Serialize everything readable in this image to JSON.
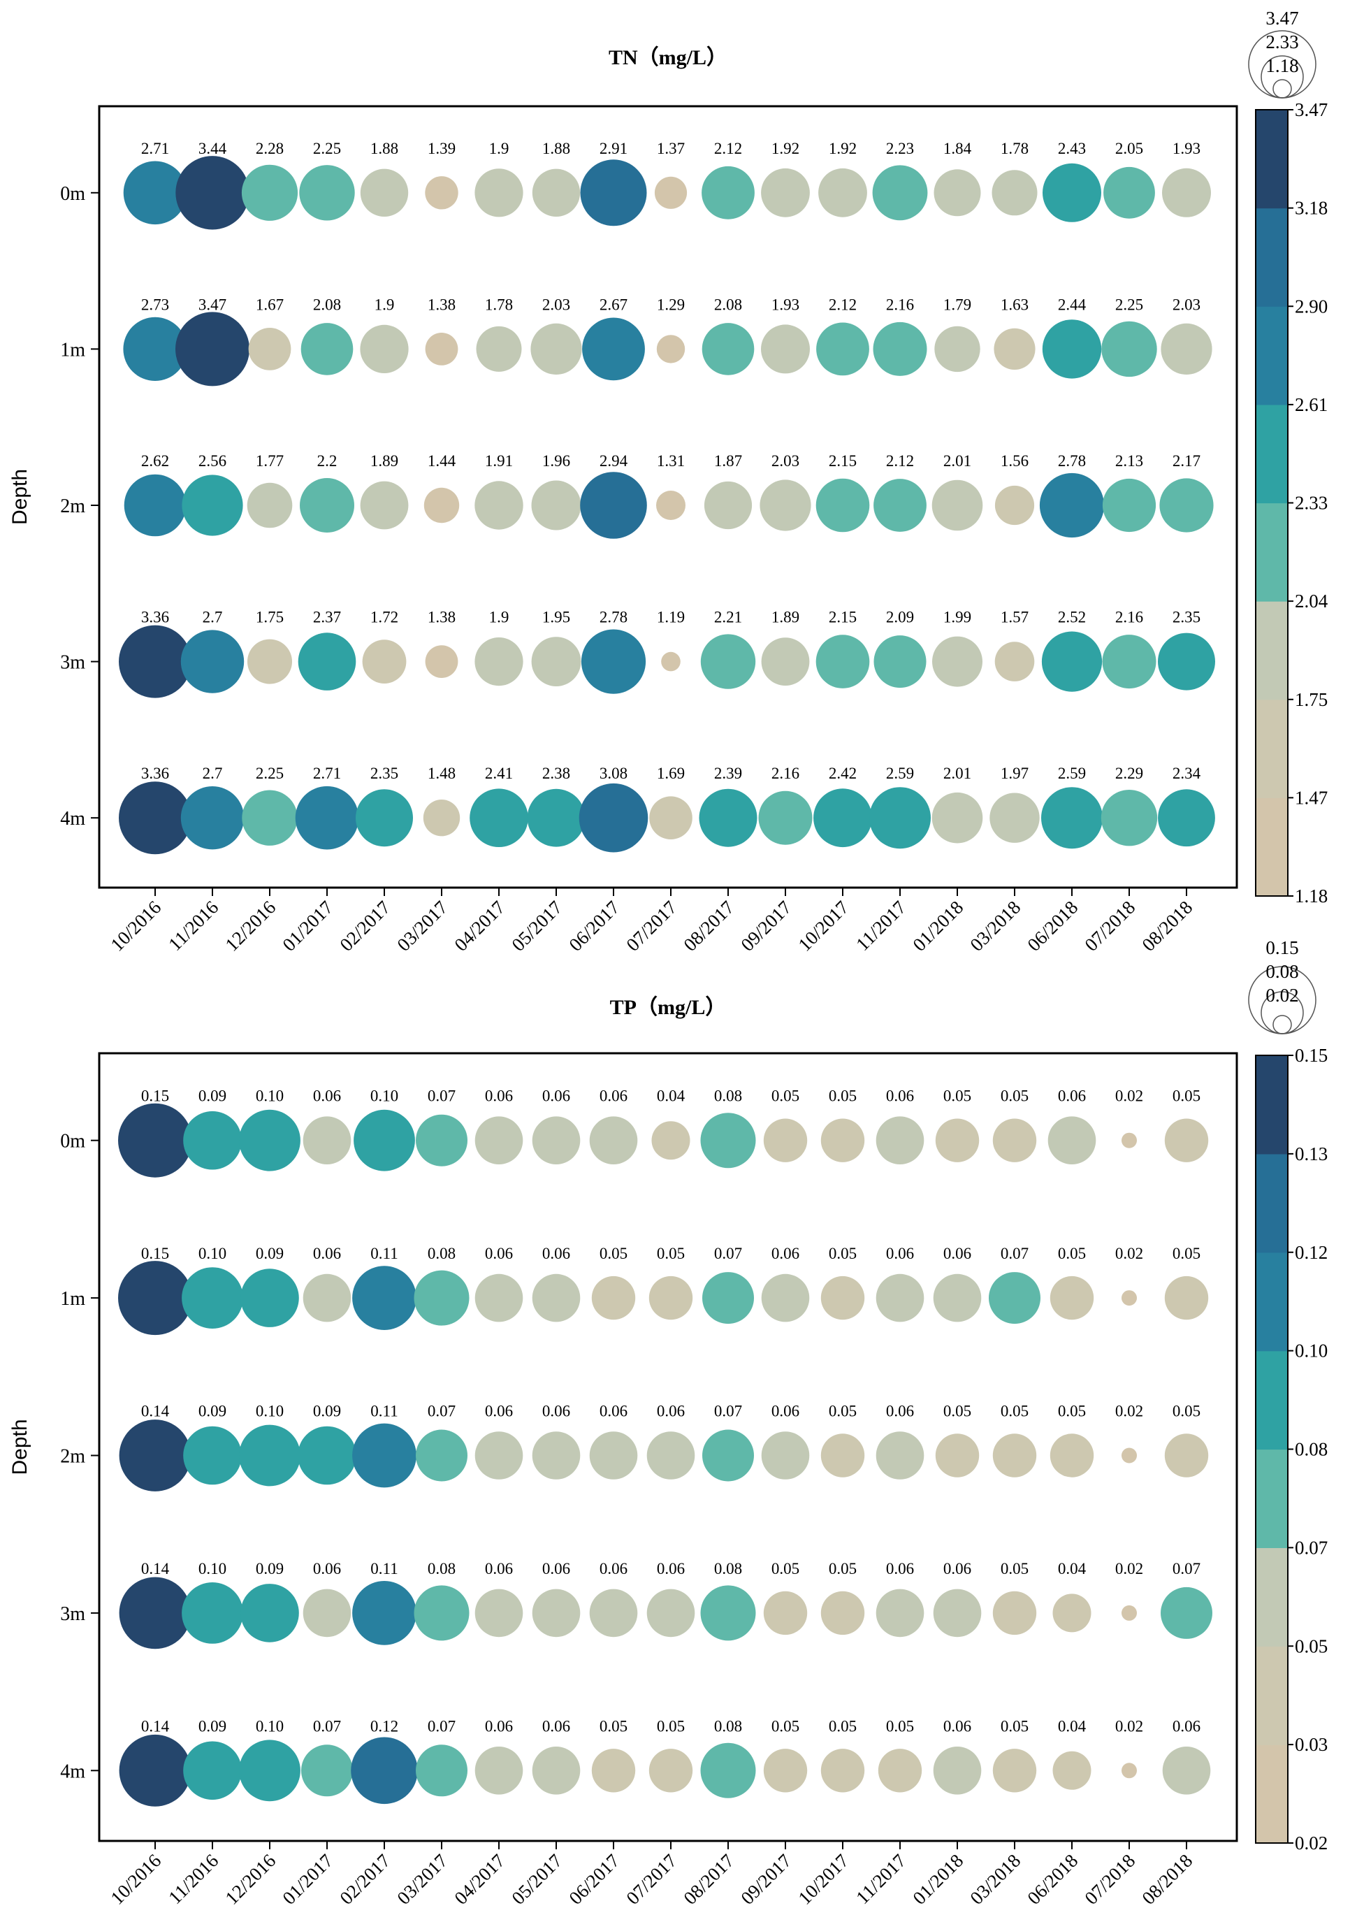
{
  "chart_data": [
    {
      "type": "bubble",
      "title": "TN（mg/L）",
      "ylabel": "Depth",
      "xlabel": "",
      "rows": [
        "0m",
        "1m",
        "2m",
        "3m",
        "4m"
      ],
      "categories": [
        "10/2016",
        "11/2016",
        "12/2016",
        "01/2017",
        "02/2017",
        "03/2017",
        "04/2017",
        "05/2017",
        "06/2017",
        "07/2017",
        "08/2017",
        "09/2017",
        "10/2017",
        "11/2017",
        "01/2018",
        "03/2018",
        "06/2018",
        "07/2018",
        "08/2018"
      ],
      "values": [
        [
          2.71,
          3.44,
          2.28,
          2.25,
          1.88,
          1.39,
          1.9,
          1.88,
          2.91,
          1.37,
          2.12,
          1.92,
          1.92,
          2.23,
          1.84,
          1.78,
          2.43,
          2.05,
          1.93
        ],
        [
          2.73,
          3.47,
          1.67,
          2.08,
          1.9,
          1.38,
          1.78,
          2.03,
          2.67,
          1.29,
          2.08,
          1.93,
          2.12,
          2.16,
          1.79,
          1.63,
          2.44,
          2.25,
          2.03
        ],
        [
          2.62,
          2.56,
          1.77,
          2.2,
          1.89,
          1.44,
          1.91,
          1.96,
          2.94,
          1.31,
          1.87,
          2.03,
          2.15,
          2.12,
          2.01,
          1.56,
          2.78,
          2.13,
          2.17
        ],
        [
          3.36,
          2.7,
          1.75,
          2.37,
          1.72,
          1.38,
          1.9,
          1.95,
          2.78,
          1.19,
          2.21,
          1.89,
          2.15,
          2.09,
          1.99,
          1.57,
          2.52,
          2.16,
          2.35
        ],
        [
          3.36,
          2.7,
          2.25,
          2.71,
          2.35,
          1.48,
          2.41,
          2.38,
          3.08,
          1.69,
          2.39,
          2.16,
          2.42,
          2.59,
          2.01,
          1.97,
          2.59,
          2.29,
          2.34
        ]
      ],
      "labels": [
        [
          "2.71",
          "3.44",
          "2.28",
          "2.25",
          "1.88",
          "1.39",
          "1.9",
          "1.88",
          "2.91",
          "1.37",
          "2.12",
          "1.92",
          "1.92",
          "2.23",
          "1.84",
          "1.78",
          "2.43",
          "2.05",
          "1.93"
        ],
        [
          "2.73",
          "3.47",
          "1.67",
          "2.08",
          "1.9",
          "1.38",
          "1.78",
          "2.03",
          "2.67",
          "1.29",
          "2.08",
          "1.93",
          "2.12",
          "2.16",
          "1.79",
          "1.63",
          "2.44",
          "2.25",
          "2.03"
        ],
        [
          "2.62",
          "2.56",
          "1.77",
          "2.2",
          "1.89",
          "1.44",
          "1.91",
          "1.96",
          "2.94",
          "1.31",
          "1.87",
          "2.03",
          "2.15",
          "2.12",
          "2.01",
          "1.56",
          "2.78",
          "2.13",
          "2.17"
        ],
        [
          "3.36",
          "2.7",
          "1.75",
          "2.37",
          "1.72",
          "1.38",
          "1.9",
          "1.95",
          "2.78",
          "1.19",
          "2.21",
          "1.89",
          "2.15",
          "2.09",
          "1.99",
          "1.57",
          "2.52",
          "2.16",
          "2.35"
        ],
        [
          "3.36",
          "2.7",
          "2.25",
          "2.71",
          "2.35",
          "1.48",
          "2.41",
          "2.38",
          "3.08",
          "1.69",
          "2.39",
          "2.16",
          "2.42",
          "2.59",
          "2.01",
          "1.97",
          "2.59",
          "2.29",
          "2.34"
        ]
      ],
      "value_range": [
        1.18,
        3.47
      ],
      "colorbar_ticks": [
        "3.47",
        "3.18",
        "2.90",
        "2.61",
        "2.33",
        "2.04",
        "1.75",
        "1.47",
        "1.18"
      ],
      "size_legend": [
        "3.47",
        "2.33",
        "1.18"
      ]
    },
    {
      "type": "bubble",
      "title": "TP（mg/L）",
      "ylabel": "Depth",
      "xlabel": "",
      "rows": [
        "0m",
        "1m",
        "2m",
        "3m",
        "4m"
      ],
      "categories": [
        "10/2016",
        "11/2016",
        "12/2016",
        "01/2017",
        "02/2017",
        "03/2017",
        "04/2017",
        "05/2017",
        "06/2017",
        "07/2017",
        "08/2017",
        "09/2017",
        "10/2017",
        "11/2017",
        "01/2018",
        "03/2018",
        "06/2018",
        "07/2018",
        "08/2018"
      ],
      "values": [
        [
          0.15,
          0.09,
          0.1,
          0.06,
          0.1,
          0.07,
          0.06,
          0.06,
          0.06,
          0.04,
          0.08,
          0.05,
          0.05,
          0.06,
          0.05,
          0.05,
          0.06,
          0.02,
          0.05
        ],
        [
          0.15,
          0.1,
          0.09,
          0.06,
          0.11,
          0.08,
          0.06,
          0.06,
          0.05,
          0.05,
          0.07,
          0.06,
          0.05,
          0.06,
          0.06,
          0.07,
          0.05,
          0.02,
          0.05
        ],
        [
          0.14,
          0.09,
          0.1,
          0.09,
          0.11,
          0.07,
          0.06,
          0.06,
          0.06,
          0.06,
          0.07,
          0.06,
          0.05,
          0.06,
          0.05,
          0.05,
          0.05,
          0.02,
          0.05
        ],
        [
          0.14,
          0.1,
          0.09,
          0.06,
          0.11,
          0.08,
          0.06,
          0.06,
          0.06,
          0.06,
          0.08,
          0.05,
          0.05,
          0.06,
          0.06,
          0.05,
          0.04,
          0.02,
          0.07
        ],
        [
          0.14,
          0.09,
          0.1,
          0.07,
          0.12,
          0.07,
          0.06,
          0.06,
          0.05,
          0.05,
          0.08,
          0.05,
          0.05,
          0.05,
          0.06,
          0.05,
          0.04,
          0.02,
          0.06
        ]
      ],
      "labels": [
        [
          "0.15",
          "0.09",
          "0.10",
          "0.06",
          "0.10",
          "0.07",
          "0.06",
          "0.06",
          "0.06",
          "0.04",
          "0.08",
          "0.05",
          "0.05",
          "0.06",
          "0.05",
          "0.05",
          "0.06",
          "0.02",
          "0.05"
        ],
        [
          "0.15",
          "0.10",
          "0.09",
          "0.06",
          "0.11",
          "0.08",
          "0.06",
          "0.06",
          "0.05",
          "0.05",
          "0.07",
          "0.06",
          "0.05",
          "0.06",
          "0.06",
          "0.07",
          "0.05",
          "0.02",
          "0.05"
        ],
        [
          "0.14",
          "0.09",
          "0.10",
          "0.09",
          "0.11",
          "0.07",
          "0.06",
          "0.06",
          "0.06",
          "0.06",
          "0.07",
          "0.06",
          "0.05",
          "0.06",
          "0.05",
          "0.05",
          "0.05",
          "0.02",
          "0.05"
        ],
        [
          "0.14",
          "0.10",
          "0.09",
          "0.06",
          "0.11",
          "0.08",
          "0.06",
          "0.06",
          "0.06",
          "0.06",
          "0.08",
          "0.05",
          "0.05",
          "0.06",
          "0.06",
          "0.05",
          "0.04",
          "0.02",
          "0.07"
        ],
        [
          "0.14",
          "0.09",
          "0.10",
          "0.07",
          "0.12",
          "0.07",
          "0.06",
          "0.06",
          "0.05",
          "0.05",
          "0.08",
          "0.05",
          "0.05",
          "0.05",
          "0.06",
          "0.05",
          "0.04",
          "0.02",
          "0.06"
        ]
      ],
      "value_range": [
        0.02,
        0.15
      ],
      "colorbar_ticks": [
        "0.15",
        "0.13",
        "0.12",
        "0.10",
        "0.08",
        "0.07",
        "0.05",
        "0.03",
        "0.02"
      ],
      "size_legend": [
        "0.15",
        "0.08",
        "0.02"
      ]
    }
  ],
  "colors": [
    "#d5c4aa",
    "#d3c5ab",
    "#cdc8b0",
    "#c2c9b5",
    "#5fb8a9",
    "#2fa2a3",
    "#28809f",
    "#266f96",
    "#25466c"
  ]
}
